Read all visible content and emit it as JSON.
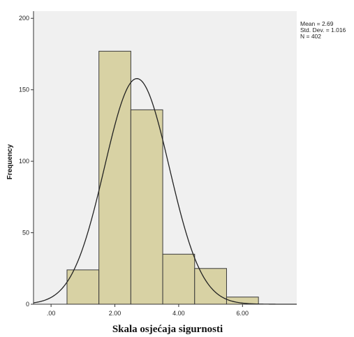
{
  "chart_data": {
    "type": "histogram",
    "title": "",
    "xlabel": "Skala osjećaja sigurnosti",
    "ylabel": "Frequency",
    "bins": [
      {
        "start": 0.5,
        "end": 1.5,
        "count": 24
      },
      {
        "start": 1.5,
        "end": 2.5,
        "count": 177
      },
      {
        "start": 2.5,
        "end": 3.5,
        "count": 136
      },
      {
        "start": 3.5,
        "end": 4.5,
        "count": 35
      },
      {
        "start": 4.5,
        "end": 5.5,
        "count": 25
      },
      {
        "start": 5.5,
        "end": 6.5,
        "count": 5
      }
    ],
    "xlim": [
      -0.55,
      7.7
    ],
    "ylim": [
      0,
      205
    ],
    "xticks": [
      0,
      2,
      4,
      6
    ],
    "xtick_labels": [
      ".00",
      "2.00",
      "4.00",
      "6.00"
    ],
    "yticks": [
      0,
      50,
      100,
      150,
      200
    ],
    "ytick_labels": [
      "0",
      "50",
      "100",
      "150",
      "200"
    ],
    "normal_curve": {
      "mean": 2.69,
      "sd": 1.016,
      "n": 402,
      "bin_width": 1
    },
    "legend_position": "top-right",
    "stats": [
      "Mean = 2.69",
      "Std. Dev. = 1.016",
      "N = 402"
    ],
    "colors": {
      "plot_background": "#f0f0f0",
      "bar_fill": "#d8d2a4",
      "bar_stroke": "#3a3a3a",
      "curve": "#222222",
      "axis": "#333333"
    }
  }
}
